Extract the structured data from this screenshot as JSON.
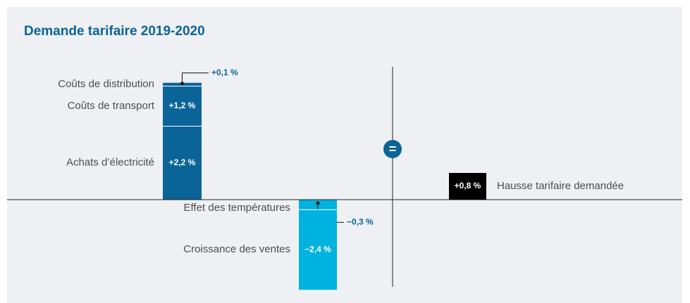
{
  "chart_data": {
    "type": "waterfall",
    "title": "Demande tarifaire 2019-2020",
    "increases": [
      {
        "label": "Achats d’électricité",
        "value": 2.2,
        "value_label": "+2,2 %",
        "color": "#0b6497"
      },
      {
        "label": "Coûts de transport",
        "value": 1.2,
        "value_label": "+1,2 %",
        "color": "#0b6497"
      },
      {
        "label": "Coûts de distribution",
        "value": 0.1,
        "value_label": "+0,1 %",
        "color": "#0b6497"
      }
    ],
    "decreases": [
      {
        "label": "Effet des températures",
        "value": -0.3,
        "value_label": "−0,3 %",
        "color": "#00b2e0"
      },
      {
        "label": "Croissance des ventes",
        "value": -2.4,
        "value_label": "−2,4 %",
        "color": "#00b2e0"
      }
    ],
    "equals": "=",
    "total": {
      "label": "Hausse tarifaire demandée",
      "value": 0.8,
      "value_label": "+0,8 %",
      "color": "#000000"
    }
  }
}
